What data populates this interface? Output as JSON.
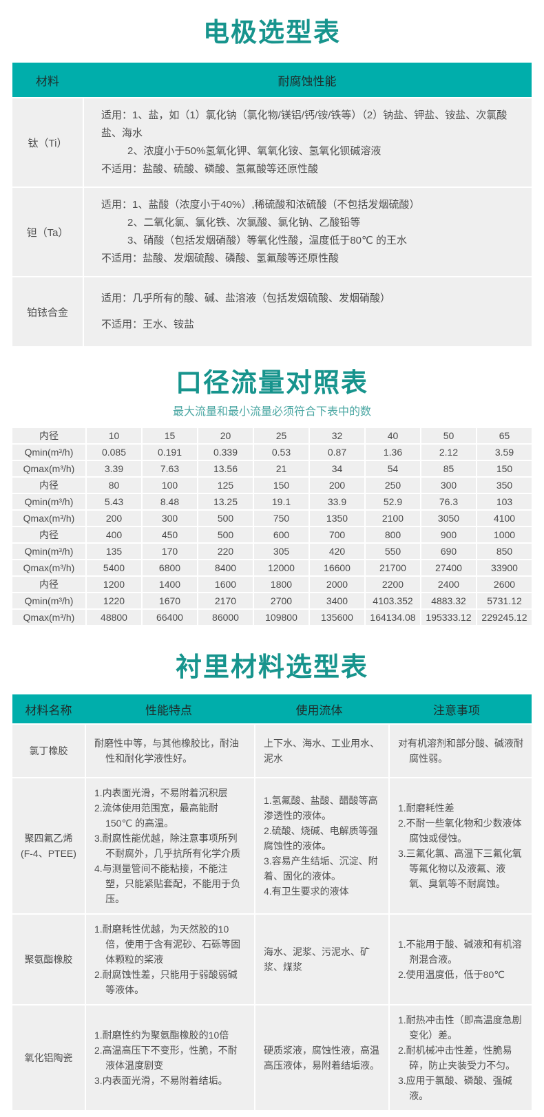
{
  "theme": {
    "teal_header": "#00aeab",
    "title_color": "#17948d",
    "subtitle_color": "#4ba7a3",
    "cell_background": "#efefef",
    "body_text": "#4e4e4e"
  },
  "electrode_table": {
    "title": "电极选型表",
    "headers": [
      "材料",
      "耐腐蚀性能"
    ],
    "rows": [
      {
        "material": "钛（Ti）",
        "lines": [
          {
            "text": "适用：1、盐，如（1）氯化钠（氯化物/镁铝/钙/铵/铁等）（2）钠盐、钾盐、铵盐、次氯酸盐、海水",
            "indent": false
          },
          {
            "text": "2、浓度小于50%氢氧化钾、氧氧化铵、氢氧化钡碱溶液",
            "indent": true
          },
          {
            "text": "不适用：盐酸、硫酸、磷酸、氢氟酸等还原性酸",
            "indent": false
          }
        ]
      },
      {
        "material": "钽（Ta）",
        "lines": [
          {
            "text": "适用：1、盐酸（浓度小于40%）,稀硫酸和浓硫酸（不包括发烟硫酸）",
            "indent": false
          },
          {
            "text": "2、二氧化氯、氯化铁、次氯酸、氯化钠、乙酸铅等",
            "indent": true
          },
          {
            "text": "3、硝酸（包括发烟硝酸）等氧化性酸，温度低于80℃ 的王水",
            "indent": true
          },
          {
            "text": "不适用：盐酸、发烟硫酸、磷酸、氢氟酸等还原性酸",
            "indent": false
          }
        ]
      },
      {
        "material": "铂铱合金",
        "lines": [
          {
            "text": "适用：几乎所有的酸、碱、盐溶液（包括发烟硫酸、发烟硝酸）",
            "indent": false
          },
          {
            "text": "不适用：王水、铵盐",
            "indent": false
          }
        ]
      }
    ]
  },
  "flow_table": {
    "title": "口径流量对照表",
    "subtitle": "最大流量和最小流量必须符合下表中的数",
    "rows": [
      {
        "label": "内径",
        "values": [
          "10",
          "15",
          "20",
          "25",
          "32",
          "40",
          "50",
          "65"
        ]
      },
      {
        "label": "Qmin(m³/h)",
        "values": [
          "0.085",
          "0.191",
          "0.339",
          "0.53",
          "0.87",
          "1.36",
          "2.12",
          "3.59"
        ]
      },
      {
        "label": "Qmax(m³/h)",
        "values": [
          "3.39",
          "7.63",
          "13.56",
          "21",
          "34",
          "54",
          "85",
          "150"
        ]
      },
      {
        "label": "内径",
        "values": [
          "80",
          "100",
          "125",
          "150",
          "200",
          "250",
          "300",
          "350"
        ]
      },
      {
        "label": "Qmin(m³/h)",
        "values": [
          "5.43",
          "8.48",
          "13.25",
          "19.1",
          "33.9",
          "52.9",
          "76.3",
          "103"
        ]
      },
      {
        "label": "Qmax(m³/h)",
        "values": [
          "200",
          "300",
          "500",
          "750",
          "1350",
          "2100",
          "3050",
          "4100"
        ]
      },
      {
        "label": "内径",
        "values": [
          "400",
          "450",
          "500",
          "600",
          "700",
          "800",
          "900",
          "1000"
        ]
      },
      {
        "label": "Qmin(m³/h)",
        "values": [
          "135",
          "170",
          "220",
          "305",
          "420",
          "550",
          "690",
          "850"
        ]
      },
      {
        "label": "Qmax(m³/h)",
        "values": [
          "5400",
          "6800",
          "8400",
          "12000",
          "16600",
          "21700",
          "27400",
          "33900"
        ]
      },
      {
        "label": "内径",
        "values": [
          "1200",
          "1400",
          "1600",
          "1800",
          "2000",
          "2200",
          "2400",
          "2600"
        ]
      },
      {
        "label": "Qmin(m³/h)",
        "values": [
          "1220",
          "1670",
          "2170",
          "2700",
          "3400",
          "4103.352",
          "4883.32",
          "5731.12"
        ]
      },
      {
        "label": "Qmax(m³/h)",
        "values": [
          "48800",
          "66400",
          "86000",
          "109800",
          "135600",
          "164134.08",
          "195333.12",
          "229245.12"
        ]
      }
    ]
  },
  "lining_table": {
    "title": "衬里材料选型表",
    "headers": [
      "材料名称",
      "性能特点",
      "使用流体",
      "注意事项"
    ],
    "rows": [
      {
        "name": [
          "氯丁橡胶"
        ],
        "features": [
          "耐磨性中等，与其他橡胶比，耐油性和耐化学液性好。"
        ],
        "fluids": [
          "上下水、海水、工业用水、泥水"
        ],
        "notes": [
          "对有机溶剂和部分酸、碱液耐腐性弱。"
        ]
      },
      {
        "name": [
          "聚四氟乙烯",
          "(F-4、PTEE)"
        ],
        "features": [
          "1.内表面光滑，不易附着沉积层",
          "2.流体使用范围宽，最高能耐 150℃ 的高温。",
          "3.耐腐性能优越，除注意事项所列 不耐腐外，几乎抗所有化学介质",
          "4.与测量管间不能粘接，不能注塑，只能紧贴套配，不能用于负压。"
        ],
        "fluids": [
          "1.氢氟酸、盐酸、醋酸等高渗透性的液体。",
          "2.硫酸、烧碱、电解质等强腐蚀性的液体。",
          "3.容易产生结垢、沉淀、附着、固化的液体。",
          "4.有卫生要求的液体"
        ],
        "notes": [
          "1.耐磨耗性差",
          "2.不耐一些氧化物和少数液体腐蚀或侵蚀。",
          "3.三氟化氯、高温下三氟化氧等氟化物以及液氟、液氧、臭氧等不耐腐蚀。"
        ]
      },
      {
        "name": [
          "聚氨酯橡胶"
        ],
        "features": [
          "1.耐磨耗性优越，为天然胶的10倍，使用于含有泥砂、石砾等固体颗粒的桨液",
          "2.耐腐蚀性差，只能用于弱酸弱碱等液体。"
        ],
        "fluids": [
          "海水、泥浆、污泥水、矿浆、煤浆"
        ],
        "notes": [
          "1.不能用于酸、碱液和有机溶剂混合液。",
          "2.使用温度低，低于80℃"
        ]
      },
      {
        "name": [
          "氧化铝陶瓷"
        ],
        "features": [
          "1.耐磨性约为聚氨酯橡胶的10倍",
          "2.高温高压下不变形，性脆，不耐液体温度剧变",
          "3.内表面光滑，不易附着结垢。"
        ],
        "fluids": [
          "硬质浆液，腐蚀性液，高温高压液体，易附着结垢液。"
        ],
        "notes": [
          "1.耐热冲击性（即高温度急剧变化）差。",
          "2.耐机械冲击性差，性脆易碎，防止夹装受力不匀。",
          "3.应用于氯酸、磷酸、强碱液。"
        ]
      }
    ]
  }
}
